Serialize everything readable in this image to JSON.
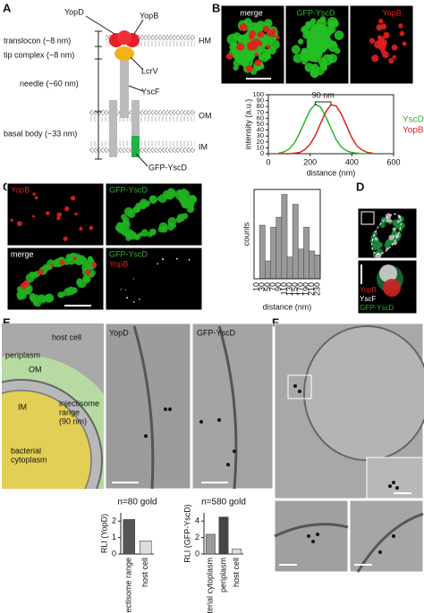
{
  "panel_labels": [
    "A",
    "B",
    "C",
    "D",
    "E",
    "F"
  ],
  "diagram": {
    "yopd": "YopD",
    "yopb": "YopB",
    "translocon": "translocon (~8 nm)",
    "hm": "HM",
    "tip": "tip complex (~8 nm)",
    "lcrv": "LcrV",
    "needle": "needle (~60 nm)",
    "yscf": "YscF",
    "om": "OM",
    "basal": "basal body (~33 nm)",
    "im": "IM",
    "gfp": "GFP-YscD"
  },
  "images": {
    "b": [
      "merge",
      "GFP-YscD",
      "YopB"
    ],
    "c": [
      "YopB",
      "GFP-YscD",
      "merge",
      "GFP-YscD",
      "YopB"
    ],
    "d": [
      "YopB",
      "YscF",
      "GFP-YscD"
    ],
    "e": [
      "host cell",
      "periplasm",
      "OM",
      "injectisome",
      "range",
      "(90 nm)",
      "IM",
      "bacterial",
      "cytoplasm",
      "YopD",
      "GFP-YscD"
    ]
  },
  "chart_data": [
    {
      "type": "line",
      "xlabel": "distance (nm)",
      "ylabel": "intensity (a.u.)",
      "annotation": "90 nm",
      "x": [
        50,
        75,
        100,
        125,
        150,
        175,
        200,
        225,
        250,
        275,
        300,
        325,
        350,
        375,
        400,
        425,
        450,
        475,
        500
      ],
      "series": [
        {
          "name": "YscD",
          "color": "#2bb52b",
          "values": [
            1,
            3,
            8,
            18,
            35,
            55,
            74,
            84,
            79,
            63,
            43,
            24,
            11,
            5,
            2,
            1,
            0,
            0,
            0
          ]
        },
        {
          "name": "YopB",
          "color": "#e02020",
          "values": [
            0,
            0,
            0,
            1,
            2,
            7,
            16,
            31,
            51,
            71,
            83,
            81,
            67,
            47,
            27,
            13,
            6,
            2,
            1
          ]
        }
      ],
      "xlim": [
        0,
        600
      ],
      "xticks": [
        0,
        200,
        400,
        600
      ],
      "ylim": [
        0,
        100
      ],
      "yticks": [
        0,
        10,
        20,
        30,
        40,
        50,
        60,
        70,
        80,
        90,
        100
      ]
    },
    {
      "type": "histogram",
      "xlabel": "distance (nm)",
      "ylabel": "counts",
      "color": "#999999",
      "categories": [
        "10",
        "30",
        "50",
        "70",
        "90",
        "110",
        "130",
        "150",
        "170",
        "190",
        "210",
        "230"
      ],
      "values": [
        0,
        54,
        18,
        52,
        62,
        85,
        22,
        75,
        30,
        52,
        28,
        24
      ],
      "ylim": [
        0,
        90
      ]
    },
    {
      "type": "bar",
      "title": "n=80 gold",
      "ylabel": "RLI (YopD)",
      "categories": [
        "injectisome range",
        "host cell"
      ],
      "values": [
        2.1,
        0.8
      ],
      "colors": [
        "#555555",
        "#dddddd"
      ],
      "ylim": [
        0,
        2.5
      ],
      "yticks": [
        0,
        1,
        2
      ]
    },
    {
      "type": "bar",
      "title": "n=580 gold",
      "ylabel": "RLI (GFP-YscD)",
      "categories": [
        "bacterial cytoplasm",
        "periplasm",
        "host cell"
      ],
      "values": [
        2.4,
        4.5,
        0.6
      ],
      "colors": [
        "#999999",
        "#444444",
        "#dddddd"
      ],
      "ylim": [
        0,
        5
      ],
      "yticks": [
        0,
        2,
        4
      ]
    }
  ]
}
